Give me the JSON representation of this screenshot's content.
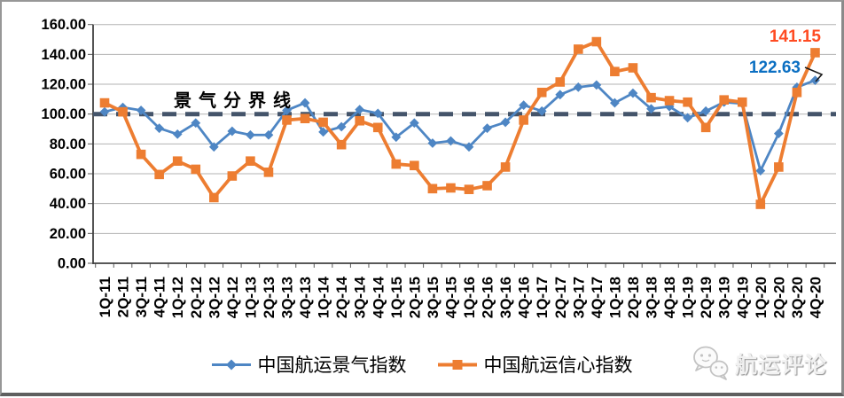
{
  "chart_data": {
    "type": "line",
    "title": "",
    "categories": [
      "1Q-11",
      "2Q-11",
      "3Q-11",
      "4Q-11",
      "1Q-12",
      "2Q-12",
      "3Q-12",
      "4Q-12",
      "1Q-13",
      "2Q-13",
      "3Q-13",
      "4Q-13",
      "1Q-14",
      "2Q-14",
      "3Q-14",
      "4Q-14",
      "1Q-15",
      "2Q-15",
      "3Q-15",
      "4Q-15",
      "1Q-16",
      "2Q-16",
      "3Q-16",
      "4Q-16",
      "1Q-17",
      "2Q-17",
      "3Q-17",
      "4Q-17",
      "1Q-18",
      "2Q-18",
      "3Q-18",
      "4Q-18",
      "1Q-19",
      "2Q-19",
      "3Q-19",
      "4Q-19",
      "1Q-20",
      "2Q-20",
      "3Q-20",
      "4Q-20"
    ],
    "series": [
      {
        "name": "中国航运景气指数",
        "color": "#4E86C4",
        "marker": "diamond",
        "values": [
          101.5,
          104.5,
          102.5,
          90.5,
          86.5,
          94,
          78,
          88.5,
          86,
          86,
          102.5,
          107.5,
          88,
          91.5,
          103,
          100.5,
          84.5,
          94,
          80.5,
          82,
          78,
          90.5,
          94.5,
          106,
          102,
          113,
          118,
          119.5,
          107.5,
          114,
          103.5,
          105,
          97.5,
          102,
          108,
          107,
          62,
          87,
          118,
          122.63
        ]
      },
      {
        "name": "中国航运信心指数",
        "color": "#ED7D31",
        "marker": "square",
        "values": [
          107.5,
          101.5,
          73,
          59.5,
          68.5,
          63,
          44,
          58.5,
          68.5,
          61,
          96,
          97,
          94.5,
          79.5,
          95.5,
          91,
          66.5,
          65.5,
          50,
          50.5,
          49.5,
          52,
          64.5,
          96,
          114.5,
          121.5,
          143.5,
          148.5,
          128.5,
          131,
          111,
          109,
          108,
          91,
          109.5,
          108,
          39.5,
          64.5,
          114.5,
          141.15
        ]
      }
    ],
    "ylim": [
      0,
      160
    ],
    "ytick_step": 20,
    "ytick_labels": [
      "0.00",
      "20.00",
      "40.00",
      "60.00",
      "80.00",
      "100.00",
      "120.00",
      "140.00",
      "160.00"
    ],
    "grid": true,
    "legend_position": "bottom",
    "x_labels_rotated_90": true,
    "reference_line": {
      "value": 100,
      "label": "景气分界线",
      "color": "#44546A",
      "style": "dashed"
    },
    "annotations": [
      {
        "text": "141.15",
        "value": 141.15,
        "series": "中国航运信心指数",
        "category": "4Q-20",
        "color": "#FF4B22"
      },
      {
        "text": "122.63",
        "value": 122.63,
        "series": "中国航运景气指数",
        "category": "4Q-20",
        "color": "#0B6FC2"
      }
    ],
    "watermark": {
      "text": "航运评论",
      "logo": "wechat-bubbles-icon"
    }
  }
}
